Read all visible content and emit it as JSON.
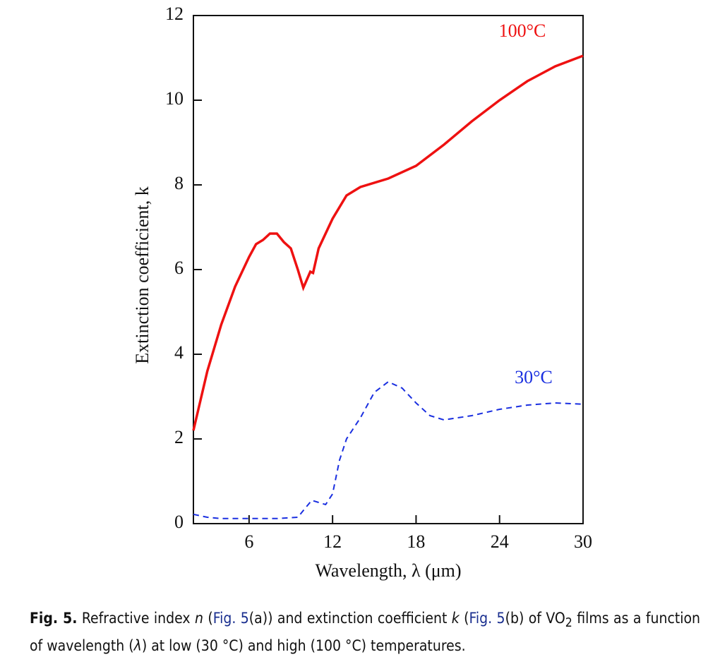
{
  "chart_data": {
    "type": "line",
    "xlabel": "Wavelength, λ (μm)",
    "ylabel": "Extinction coefficient, k",
    "xlim": [
      2,
      30
    ],
    "ylim": [
      0,
      12
    ],
    "xticks": [
      6,
      12,
      18,
      24,
      30
    ],
    "yticks": [
      0,
      2,
      4,
      6,
      8,
      10,
      12
    ],
    "series": [
      {
        "name": "100°C",
        "color": "#ee1111",
        "dash": false,
        "x": [
          2,
          3,
          4,
          5,
          6,
          6.5,
          7,
          7.5,
          8,
          8.5,
          9,
          9.5,
          9.9,
          10.2,
          10.4,
          10.6,
          11,
          12,
          13,
          14,
          16,
          18,
          20,
          22,
          24,
          26,
          28,
          30
        ],
        "values": [
          2.2,
          3.6,
          4.7,
          5.6,
          6.3,
          6.6,
          6.7,
          6.85,
          6.85,
          6.65,
          6.5,
          6.0,
          5.57,
          5.8,
          5.95,
          5.92,
          6.5,
          7.2,
          7.75,
          7.95,
          8.15,
          8.45,
          8.95,
          9.5,
          10.0,
          10.45,
          10.8,
          11.05
        ]
      },
      {
        "name": "30°C",
        "color": "#1a2fe0",
        "dash": true,
        "x": [
          2,
          3,
          4,
          6,
          8,
          9.5,
          10,
          10.5,
          11,
          11.5,
          12,
          12.5,
          13,
          14,
          15,
          16,
          17,
          18,
          19,
          20,
          22,
          24,
          26,
          28,
          30
        ],
        "values": [
          0.22,
          0.15,
          0.12,
          0.12,
          0.12,
          0.15,
          0.35,
          0.55,
          0.5,
          0.45,
          0.7,
          1.5,
          2.0,
          2.5,
          3.1,
          3.35,
          3.2,
          2.85,
          2.55,
          2.45,
          2.55,
          2.7,
          2.8,
          2.85,
          2.82
        ]
      }
    ]
  },
  "caption": [
    "Fig. 5.",
    " Refractive index ",
    "n",
    " (",
    "Fig. 5",
    "(a)) and extinction coefficient ",
    "k",
    " (",
    "Fig. 5",
    "(b) of VO",
    "2",
    " films as a function of wavelength (",
    "λ",
    ") at low (30 °C) and high (100 °C) temperatures."
  ]
}
